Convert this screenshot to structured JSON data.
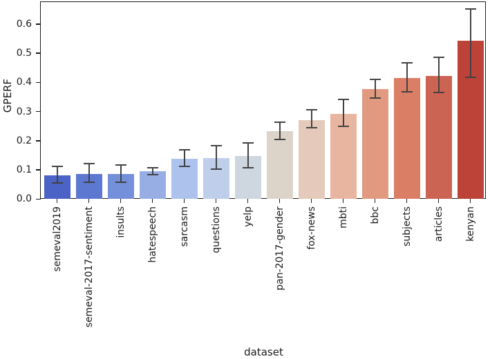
{
  "figure": {
    "background": "#ffffff",
    "spine_color": "#1a1a1a",
    "text_color": "#1a1a1a"
  },
  "chart_data": {
    "type": "bar",
    "xlabel": "dataset",
    "ylabel": "GPERF",
    "palette": "coolwarm",
    "grid": false,
    "legend": "none",
    "categories": [
      "semeval2019",
      "semeval-2017-sentiment",
      "insults",
      "hatespeech",
      "sarcasm",
      "questions",
      "yelp",
      "pan-2017-gender",
      "fox-news",
      "mbti",
      "bbc",
      "subjects",
      "articles",
      "kenyan"
    ],
    "values": [
      0.081,
      0.087,
      0.086,
      0.095,
      0.138,
      0.141,
      0.148,
      0.233,
      0.272,
      0.293,
      0.377,
      0.415,
      0.422,
      0.543
    ],
    "error_low": [
      0.055,
      0.058,
      0.058,
      0.083,
      0.113,
      0.103,
      0.108,
      0.205,
      0.244,
      0.25,
      0.347,
      0.367,
      0.366,
      0.418
    ],
    "error_high": [
      0.112,
      0.122,
      0.117,
      0.108,
      0.17,
      0.182,
      0.193,
      0.263,
      0.306,
      0.342,
      0.411,
      0.468,
      0.487,
      0.652
    ],
    "bar_colors": [
      "#4b62c6",
      "#5d78d1",
      "#7590da",
      "#97aee4",
      "#adc2ec",
      "#bfceeb",
      "#ced6e0",
      "#dcd3c9",
      "#e5cabb",
      "#e8b5a0",
      "#e19a80",
      "#da7e66",
      "#cc6453",
      "#bd4339"
    ],
    "errorbar_color": "#424242",
    "ylim": [
      0,
      0.676
    ],
    "yticks": [
      0.0,
      0.1,
      0.2,
      0.3,
      0.4,
      0.5,
      0.6
    ],
    "ytick_labels": [
      "0.0",
      "0.1",
      "0.2",
      "0.3",
      "0.4",
      "0.5",
      "0.6"
    ]
  }
}
